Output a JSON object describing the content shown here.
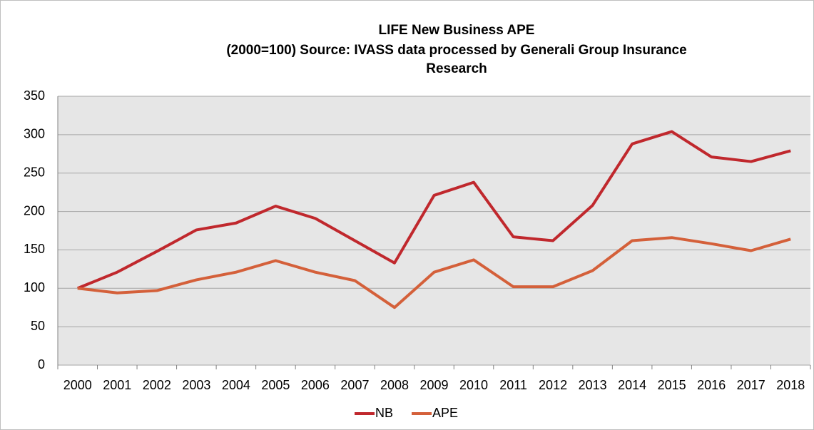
{
  "chart_data": {
    "type": "line",
    "title": [
      "LIFE New Business APE",
      "(2000=100) Source: IVASS data processed by Generali Group Insurance",
      "Research"
    ],
    "categories": [
      "2000",
      "2001",
      "2002",
      "2003",
      "2004",
      "2005",
      "2006",
      "2007",
      "2008",
      "2009",
      "2010",
      "2011",
      "2012",
      "2013",
      "2014",
      "2015",
      "2016",
      "2017",
      "2018"
    ],
    "series": [
      {
        "name": "NB",
        "color": "#c0282d",
        "values": [
          100,
          121,
          148,
          176,
          185,
          207,
          191,
          162,
          133,
          221,
          238,
          167,
          162,
          208,
          288,
          304,
          271,
          265,
          279
        ]
      },
      {
        "name": "APE",
        "color": "#d4603a",
        "values": [
          100,
          94,
          97,
          111,
          121,
          136,
          121,
          110,
          75,
          121,
          137,
          102,
          102,
          123,
          162,
          166,
          158,
          149,
          164
        ]
      }
    ],
    "ylim": [
      0,
      350
    ],
    "yticks": [
      0,
      50,
      100,
      150,
      200,
      250,
      300,
      350
    ],
    "grid": true,
    "legend": "bottom"
  }
}
